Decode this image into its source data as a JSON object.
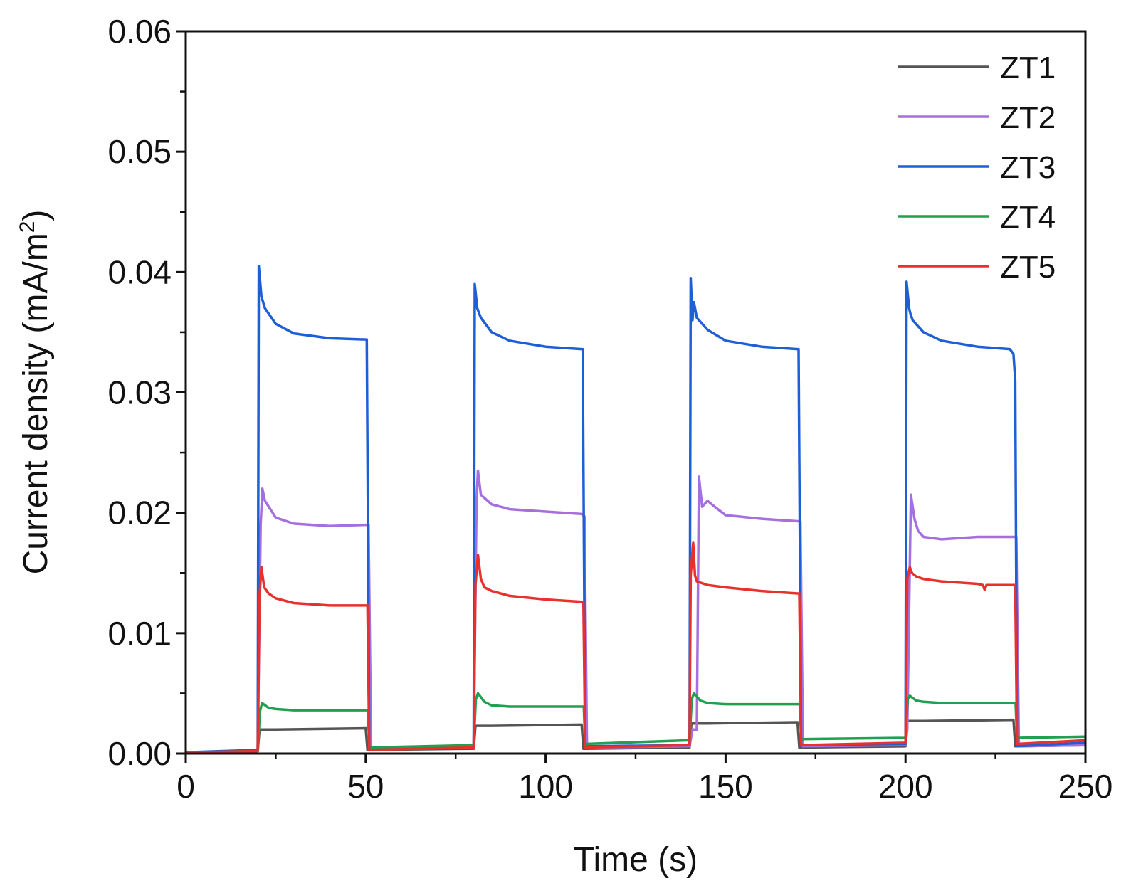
{
  "chart_data": {
    "type": "line",
    "xlabel": "Time (s)",
    "ylabel_prefix": "Current density (mA/m",
    "ylabel_sup": "2",
    "ylabel_suffix": ")",
    "xlim": [
      0,
      250
    ],
    "ylim": [
      0,
      0.06
    ],
    "xticks": [
      0,
      50,
      100,
      150,
      200,
      250
    ],
    "xtick_labels": [
      "0",
      "50",
      "100",
      "150",
      "200",
      "250"
    ],
    "yticks": [
      0,
      0.01,
      0.02,
      0.03,
      0.04,
      0.05,
      0.06
    ],
    "ytick_labels": [
      "0.00",
      "0.01",
      "0.02",
      "0.03",
      "0.04",
      "0.05",
      "0.06"
    ],
    "grid": false,
    "legend_position": "top-right",
    "series": [
      {
        "name": "ZT1",
        "color": "#555555",
        "x": [
          0,
          20,
          20.5,
          25,
          50,
          50.5,
          51,
          80,
          80.5,
          85,
          110,
          110.5,
          111,
          140,
          140.5,
          145,
          170,
          170.5,
          171,
          200,
          200.5,
          205,
          230,
          230.5,
          231,
          250
        ],
        "y": [
          0.0001,
          0.0002,
          0.002,
          0.002,
          0.0021,
          0.0003,
          0.0003,
          0.0004,
          0.0023,
          0.0023,
          0.0024,
          0.0004,
          0.0004,
          0.0005,
          0.0025,
          0.0025,
          0.0026,
          0.0005,
          0.0005,
          0.0006,
          0.0027,
          0.0027,
          0.0028,
          0.0006,
          0.0006,
          0.0007
        ]
      },
      {
        "name": "ZT2",
        "color": "#a66fe0",
        "x": [
          0,
          20,
          20.8,
          21.3,
          22,
          25,
          30,
          40,
          50,
          50.8,
          51.5,
          80,
          80.8,
          81.2,
          82,
          85,
          90,
          100,
          110,
          110.8,
          111.5,
          140,
          140.8,
          142,
          142.6,
          143.5,
          145,
          147,
          150,
          160,
          170,
          170.8,
          171.5,
          200,
          200.5,
          201.5,
          202.5,
          203.5,
          205,
          210,
          220,
          230,
          230.8,
          231.5,
          250
        ],
        "y": [
          0.0001,
          0.0002,
          0.019,
          0.022,
          0.021,
          0.0196,
          0.0191,
          0.0189,
          0.019,
          0.019,
          0.0004,
          0.0005,
          0.021,
          0.0235,
          0.0215,
          0.0207,
          0.0203,
          0.0201,
          0.0199,
          0.0197,
          0.0005,
          0.0006,
          0.002,
          0.002,
          0.023,
          0.0205,
          0.021,
          0.0205,
          0.0198,
          0.0195,
          0.0193,
          0.0193,
          0.0006,
          0.0007,
          0.002,
          0.0215,
          0.0195,
          0.0185,
          0.018,
          0.0178,
          0.018,
          0.018,
          0.018,
          0.0006,
          0.0007
        ]
      },
      {
        "name": "ZT3",
        "color": "#1f5fd6",
        "x": [
          0,
          20,
          20.3,
          21,
          22,
          25,
          30,
          40,
          50,
          50.3,
          51,
          80,
          80.3,
          81,
          82,
          85,
          90,
          100,
          110,
          110.3,
          111,
          140,
          140.3,
          140.8,
          141.2,
          142,
          145,
          150,
          160,
          170,
          170.3,
          171,
          200,
          200.3,
          201,
          201.4,
          202,
          205,
          210,
          220,
          229,
          230,
          230.5,
          231,
          250
        ],
        "y": [
          0.0001,
          0.0003,
          0.0405,
          0.038,
          0.037,
          0.0357,
          0.0349,
          0.0345,
          0.0344,
          0.0344,
          0.0005,
          0.0006,
          0.039,
          0.037,
          0.0362,
          0.035,
          0.0343,
          0.0338,
          0.0336,
          0.0336,
          0.0006,
          0.0007,
          0.0395,
          0.036,
          0.0375,
          0.0362,
          0.0352,
          0.0343,
          0.0338,
          0.0336,
          0.0336,
          0.0007,
          0.0008,
          0.0392,
          0.037,
          0.0365,
          0.036,
          0.035,
          0.0343,
          0.0338,
          0.0336,
          0.0332,
          0.031,
          0.0006,
          0.0009
        ]
      },
      {
        "name": "ZT4",
        "color": "#20a050",
        "x": [
          0,
          20,
          20.6,
          21.2,
          23,
          25,
          30,
          40,
          50,
          50.6,
          51,
          80,
          80.6,
          81.2,
          83,
          85,
          90,
          100,
          110,
          110.6,
          111,
          140,
          140.6,
          141.2,
          143,
          145,
          150,
          160,
          170,
          170.6,
          171,
          200,
          200.6,
          201.2,
          203,
          205,
          210,
          220,
          230,
          230.6,
          231,
          250
        ],
        "y": [
          0.0001,
          0.0002,
          0.0035,
          0.0042,
          0.0038,
          0.0037,
          0.0036,
          0.0036,
          0.0036,
          0.0036,
          0.0005,
          0.0007,
          0.0045,
          0.005,
          0.0043,
          0.004,
          0.0039,
          0.0039,
          0.0039,
          0.0039,
          0.0008,
          0.0011,
          0.0045,
          0.005,
          0.0044,
          0.0042,
          0.0041,
          0.0041,
          0.0041,
          0.0041,
          0.0012,
          0.0013,
          0.0045,
          0.0048,
          0.0044,
          0.0043,
          0.0042,
          0.0042,
          0.0042,
          0.0042,
          0.0013,
          0.0014
        ]
      },
      {
        "name": "ZT5",
        "color": "#e8312c",
        "x": [
          0,
          20,
          20.5,
          21,
          21.8,
          23,
          25,
          30,
          40,
          50,
          50.5,
          51,
          80,
          80.5,
          81.2,
          82,
          83,
          85,
          90,
          100,
          110,
          110.5,
          111,
          140,
          140.3,
          141,
          141.5,
          142,
          145,
          150,
          160,
          170,
          170.5,
          171,
          200,
          200.5,
          201.2,
          201.8,
          203,
          205,
          210,
          220,
          221.5,
          222,
          222.5,
          223,
          230,
          230.5,
          231,
          250
        ],
        "y": [
          0.0001,
          0.0002,
          0.013,
          0.0155,
          0.0138,
          0.0133,
          0.0129,
          0.0125,
          0.0123,
          0.0123,
          0.0123,
          0.0003,
          0.0005,
          0.014,
          0.0165,
          0.0145,
          0.0138,
          0.0135,
          0.0131,
          0.0128,
          0.0126,
          0.0126,
          0.0005,
          0.0007,
          0.0148,
          0.0175,
          0.0148,
          0.0143,
          0.014,
          0.0138,
          0.0135,
          0.0133,
          0.0133,
          0.0007,
          0.0009,
          0.0145,
          0.0155,
          0.015,
          0.0147,
          0.0145,
          0.0143,
          0.0141,
          0.014,
          0.0136,
          0.014,
          0.014,
          0.014,
          0.014,
          0.0008,
          0.0011
        ]
      }
    ]
  }
}
